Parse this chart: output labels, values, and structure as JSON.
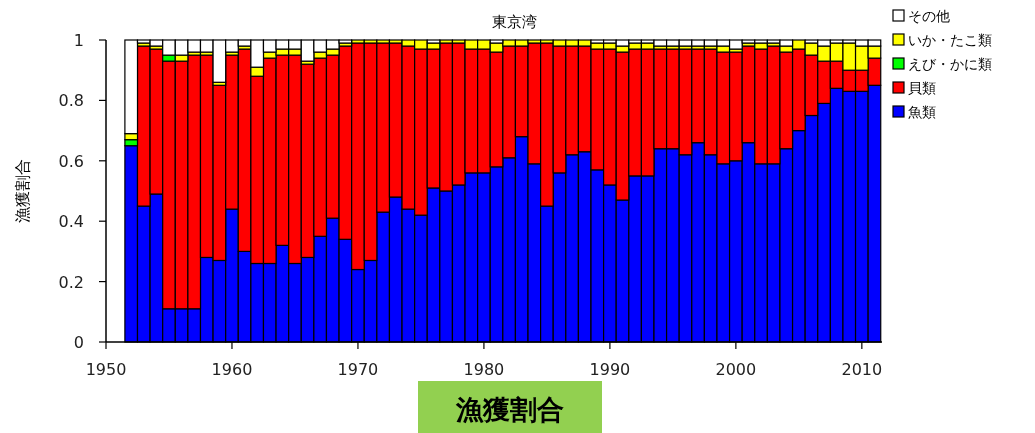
{
  "chart_data": {
    "type": "bar",
    "stacked": true,
    "title": "東京湾",
    "ylabel": "漁獲割合",
    "annotations": [
      "漁獲割合"
    ],
    "x": [
      1952,
      1953,
      1954,
      1955,
      1956,
      1957,
      1958,
      1959,
      1960,
      1961,
      1962,
      1963,
      1964,
      1965,
      1966,
      1967,
      1968,
      1969,
      1970,
      1971,
      1972,
      1973,
      1974,
      1975,
      1976,
      1977,
      1978,
      1979,
      1980,
      1981,
      1982,
      1983,
      1984,
      1985,
      1986,
      1987,
      1988,
      1989,
      1990,
      1991,
      1992,
      1993,
      1994,
      1995,
      1996,
      1997,
      1998,
      1999,
      2000,
      2001,
      2002,
      2003,
      2004,
      2005,
      2006,
      2007,
      2008,
      2009,
      2010,
      2011
    ],
    "series": [
      {
        "name": "魚類",
        "color": "#0000ff",
        "values": [
          0.65,
          0.45,
          0.49,
          0.11,
          0.11,
          0.11,
          0.28,
          0.27,
          0.44,
          0.3,
          0.26,
          0.26,
          0.32,
          0.26,
          0.28,
          0.35,
          0.41,
          0.34,
          0.24,
          0.27,
          0.43,
          0.48,
          0.44,
          0.42,
          0.51,
          0.5,
          0.52,
          0.56,
          0.56,
          0.58,
          0.61,
          0.68,
          0.59,
          0.45,
          0.56,
          0.62,
          0.63,
          0.57,
          0.52,
          0.47,
          0.55,
          0.55,
          0.64,
          0.64,
          0.62,
          0.66,
          0.62,
          0.59,
          0.6,
          0.66,
          0.59,
          0.59,
          0.64,
          0.7,
          0.75,
          0.79,
          0.84,
          0.83,
          0.83,
          0.85
        ]
      },
      {
        "name": "貝類",
        "color": "#ff0000",
        "values": [
          0,
          0.53,
          0.48,
          0.82,
          0.82,
          0.84,
          0.67,
          0.58,
          0.51,
          0.67,
          0.62,
          0.68,
          0.63,
          0.69,
          0.64,
          0.59,
          0.54,
          0.64,
          0.75,
          0.72,
          0.56,
          0.51,
          0.54,
          0.55,
          0.46,
          0.49,
          0.47,
          0.41,
          0.41,
          0.38,
          0.37,
          0.3,
          0.4,
          0.54,
          0.42,
          0.36,
          0.35,
          0.4,
          0.45,
          0.49,
          0.42,
          0.42,
          0.33,
          0.33,
          0.35,
          0.31,
          0.35,
          0.37,
          0.36,
          0.32,
          0.38,
          0.39,
          0.32,
          0.27,
          0.2,
          0.14,
          0.09,
          0.07,
          0.07,
          0.09
        ]
      },
      {
        "name": "えび・かに類",
        "color": "#00ff00",
        "values": [
          0.02,
          0,
          0,
          0.02,
          0,
          0,
          0,
          0,
          0,
          0,
          0,
          0,
          0,
          0,
          0,
          0,
          0,
          0,
          0,
          0,
          0,
          0,
          0,
          0,
          0,
          0,
          0,
          0,
          0,
          0,
          0,
          0,
          0,
          0,
          0,
          0,
          0,
          0,
          0,
          0,
          0,
          0,
          0,
          0,
          0,
          0,
          0,
          0,
          0,
          0,
          0,
          0,
          0,
          0,
          0,
          0,
          0,
          0,
          0,
          0
        ]
      },
      {
        "name": "いか・たこ類",
        "color": "#ffff00",
        "values": [
          0.02,
          0.01,
          0.01,
          0,
          0.02,
          0.01,
          0.01,
          0.01,
          0.01,
          0.01,
          0.03,
          0.02,
          0.02,
          0.02,
          0.01,
          0.02,
          0.02,
          0.01,
          0.01,
          0.01,
          0.01,
          0.01,
          0.02,
          0.03,
          0.02,
          0.01,
          0.01,
          0.03,
          0.03,
          0.03,
          0.02,
          0.02,
          0.01,
          0.01,
          0.02,
          0.02,
          0.02,
          0.02,
          0.02,
          0.02,
          0.02,
          0.02,
          0.01,
          0.01,
          0.01,
          0.01,
          0.01,
          0.02,
          0.01,
          0.01,
          0.02,
          0.01,
          0.02,
          0.03,
          0.04,
          0.05,
          0.06,
          0.09,
          0.08,
          0.04
        ]
      },
      {
        "name": "その他",
        "color": "#ffffff",
        "values": [
          0.31,
          0.01,
          0.02,
          0.05,
          0.05,
          0.04,
          0.04,
          0.14,
          0.04,
          0.02,
          0.09,
          0.04,
          0.03,
          0.03,
          0.07,
          0.04,
          0.03,
          0.01,
          0,
          0,
          0,
          0,
          0,
          0,
          0.01,
          0,
          0,
          0,
          0,
          0.01,
          0,
          0,
          0,
          0,
          0,
          0,
          0,
          0.01,
          0.01,
          0.02,
          0.01,
          0.01,
          0.02,
          0.02,
          0.02,
          0.02,
          0.02,
          0.02,
          0.03,
          0.01,
          0.01,
          0.01,
          0.02,
          0,
          0.01,
          0.02,
          0.01,
          0.01,
          0.02,
          0.02
        ]
      }
    ],
    "xlim": [
      1950,
      2011.6
    ],
    "xticks": [
      1950,
      1960,
      1970,
      1980,
      1990,
      2000,
      2010
    ],
    "ylim": [
      0,
      1
    ],
    "yticks": [
      0,
      0.2,
      0.4,
      0.6,
      0.8,
      1
    ],
    "legend": "top right"
  }
}
